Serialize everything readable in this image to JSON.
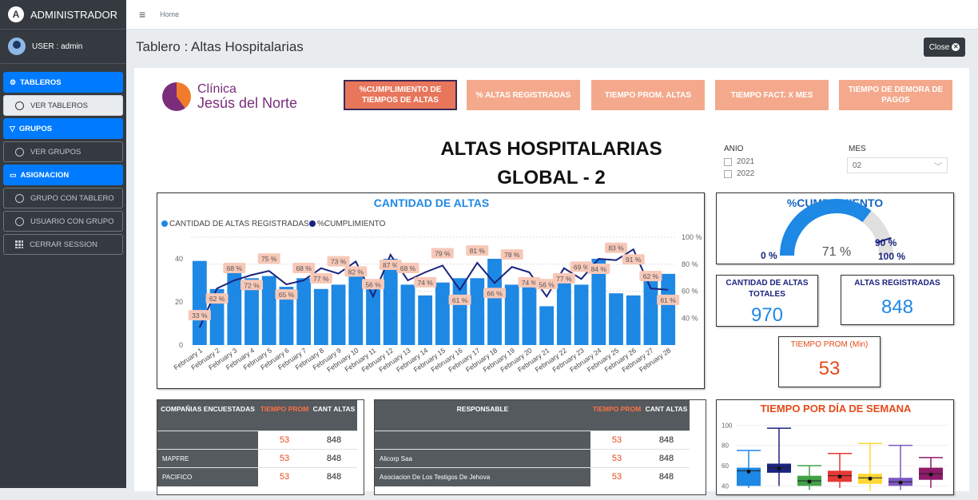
{
  "sidebar": {
    "brand": "ADMINISTRADOR",
    "user": "USER : admin",
    "items": [
      {
        "label": "TABLEROS",
        "type": "head"
      },
      {
        "label": "VER TABLEROS",
        "type": "sub",
        "active": true
      },
      {
        "label": "GRUPOS",
        "type": "head"
      },
      {
        "label": "VER GRUPOS",
        "type": "sub"
      },
      {
        "label": "ASIGNACION",
        "type": "head"
      },
      {
        "label": "GRUPO CON TABLERO",
        "type": "sub"
      },
      {
        "label": "USUARIO CON GRUPO",
        "type": "sub"
      },
      {
        "label": "CERRAR SESSION",
        "type": "sub",
        "icon": "grid"
      }
    ]
  },
  "topbar": {
    "breadcrumb": "Home"
  },
  "page": {
    "title": "Tablero : Altas Hospitalarias",
    "close": "Close"
  },
  "dash": {
    "logo": {
      "line1": "Clínica",
      "line2": "Jesús del Norte"
    },
    "tabs": [
      "%CUMPLIMIENTO DE TIEMPOS DE ALTAS",
      "% ALTAS REGISTRADAS",
      "TIEMPO PROM. ALTAS",
      "TIEMPO FACT. X MES",
      "TIEMPO DE DEMORA DE PAGOS"
    ],
    "title1": "ALTAS HOSPITALARIAS",
    "title2": "GLOBAL - 2",
    "anio_label": "ANIO",
    "years": [
      "2021",
      "2022"
    ],
    "mes_label": "MES",
    "mes_value": "02",
    "cumpl": {
      "title": "%CUMPLIMIENTO",
      "value": "71 %",
      "min": "0 %",
      "max": "100 %",
      "target": "90 %"
    },
    "kpi1": {
      "label": "CANTIDAD DE ALTAS TOTALES",
      "value": "970"
    },
    "kpi2": {
      "label": "ALTAS REGISTRADAS",
      "value": "848"
    },
    "kpi3": {
      "label": "TIEMPO PROM (Min)",
      "value": "53"
    },
    "table1": {
      "h1": "COMPAÑIAS ENCUESTADAS",
      "h2": "TIEMPO PROM",
      "h3": "CANT ALTAS",
      "rows": [
        {
          "name": "",
          "t": "53",
          "c": "848"
        },
        {
          "name": "MAPFRE",
          "t": "53",
          "c": "848"
        },
        {
          "name": "PACIFICO",
          "t": "53",
          "c": "848"
        }
      ]
    },
    "table2": {
      "h1": "RESPONSABLE",
      "h2": "TIEMPO PROM",
      "h3": "CANT ALTAS",
      "rows": [
        {
          "name": "",
          "t": "53",
          "c": "848"
        },
        {
          "name": "Alicorp Saa",
          "t": "53",
          "c": "848"
        },
        {
          "name": "Asociacion De Los Testigos De Jehova",
          "t": "53",
          "c": "848"
        }
      ]
    }
  },
  "chart_data": [
    {
      "type": "bar",
      "title": "CANTIDAD DE ALTAS",
      "legend": [
        "CANTIDAD DE ALTAS REGISTRADAS",
        "%CUMPLIMIENTO"
      ],
      "categories": [
        "February 1",
        "February 2",
        "February 3",
        "February 4",
        "February 5",
        "February 6",
        "February 7",
        "February 8",
        "February 9",
        "February 10",
        "February 11",
        "February 12",
        "February 13",
        "February 14",
        "February 15",
        "February 16",
        "February 17",
        "February 18",
        "February 19",
        "February 20",
        "February 21",
        "February 22",
        "February 23",
        "February 24",
        "February 25",
        "February 26",
        "February 27",
        "February 28"
      ],
      "series": [
        {
          "name": "CANTIDAD DE ALTAS REGISTRADAS",
          "values": [
            39,
            26,
            37,
            31,
            32,
            27,
            31,
            26,
            28,
            35,
            27,
            40,
            28,
            23,
            29,
            31,
            31,
            40,
            28,
            30,
            18,
            30,
            28,
            40,
            24,
            23,
            34,
            33
          ]
        },
        {
          "name": "%CUMPLIMIENTO",
          "values": [
            33,
            62,
            68,
            72,
            75,
            65,
            68,
            77,
            73,
            82,
            56,
            87,
            68,
            74,
            79,
            61,
            81,
            66,
            78,
            74,
            56,
            77,
            69,
            84,
            83,
            91,
            62,
            61
          ]
        }
      ],
      "yticks_left": [
        "0",
        "20",
        "40"
      ],
      "yticks_right": [
        "40 %",
        "60 %",
        "80 %",
        "100 %"
      ],
      "ylim_left": [
        0,
        50
      ],
      "ylim_right": [
        20,
        100
      ],
      "line_color": "#1a237e",
      "bar_color": "#1e88e5"
    },
    {
      "type": "boxplot",
      "title": "TIEMPO POR DÍA DE SEMANA",
      "yticks": [
        "40",
        "60",
        "80",
        "100"
      ],
      "boxes": [
        {
          "color": "#1e88e5",
          "min": 38,
          "q1": 40,
          "median": 55,
          "q3": 58,
          "max": 75
        },
        {
          "color": "#1a237e",
          "min": 40,
          "q1": 53,
          "median": 58,
          "q3": 62,
          "max": 97
        },
        {
          "color": "#43a047",
          "min": 36,
          "q1": 40,
          "median": 45,
          "q3": 50,
          "max": 60
        },
        {
          "color": "#e53935",
          "min": 38,
          "q1": 44,
          "median": 50,
          "q3": 55,
          "max": 72
        },
        {
          "color": "#fdd835",
          "min": 35,
          "q1": 42,
          "median": 48,
          "q3": 52,
          "max": 82
        },
        {
          "color": "#7e57c2",
          "min": 36,
          "q1": 40,
          "median": 44,
          "q3": 48,
          "max": 80
        },
        {
          "color": "#8e1b6a",
          "min": 38,
          "q1": 46,
          "median": 52,
          "q3": 58,
          "max": 68
        }
      ]
    }
  ]
}
